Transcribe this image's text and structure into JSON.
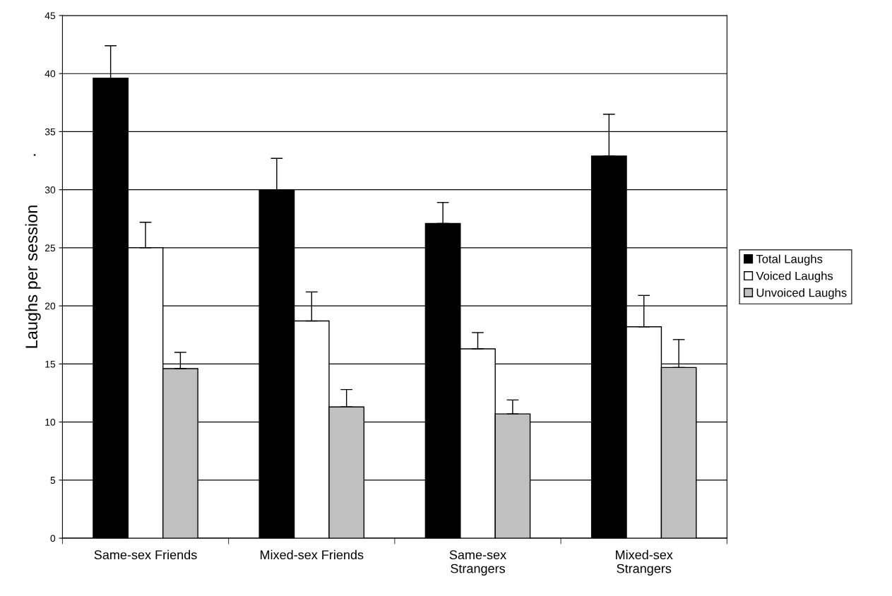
{
  "chart_data": {
    "type": "bar",
    "ylabel": "Laughs per session",
    "annotations": [
      "."
    ],
    "categories": [
      "Same-sex Friends",
      "Mixed-sex Friends",
      "Same-sex\nStrangers",
      "Mixed-sex\nStrangers"
    ],
    "series": [
      {
        "name": "Total Laughs",
        "color": "#000000",
        "values": [
          39.6,
          30.0,
          27.1,
          32.9
        ],
        "errors": [
          [
            39.6,
            42.4
          ],
          [
            30.0,
            32.7
          ],
          [
            27.1,
            28.9
          ],
          [
            32.9,
            36.5
          ]
        ]
      },
      {
        "name": "Voiced Laughs",
        "color": "#ffffff",
        "values": [
          25.0,
          18.7,
          16.3,
          18.2
        ],
        "errors": [
          [
            25.0,
            27.2
          ],
          [
            18.7,
            21.2
          ],
          [
            16.3,
            17.7
          ],
          [
            18.2,
            20.9
          ]
        ]
      },
      {
        "name": "Unvoiced Laughs",
        "color": "#c0c0c0",
        "values": [
          14.6,
          11.3,
          10.7,
          14.7
        ],
        "errors": [
          [
            14.6,
            16.0
          ],
          [
            11.3,
            12.8
          ],
          [
            10.7,
            11.9
          ],
          [
            14.7,
            17.1
          ]
        ]
      }
    ],
    "ylim": [
      0,
      45
    ],
    "yticks": [
      0,
      5,
      10,
      15,
      20,
      25,
      30,
      35,
      40,
      45
    ],
    "grid": "y",
    "legend": "right"
  }
}
